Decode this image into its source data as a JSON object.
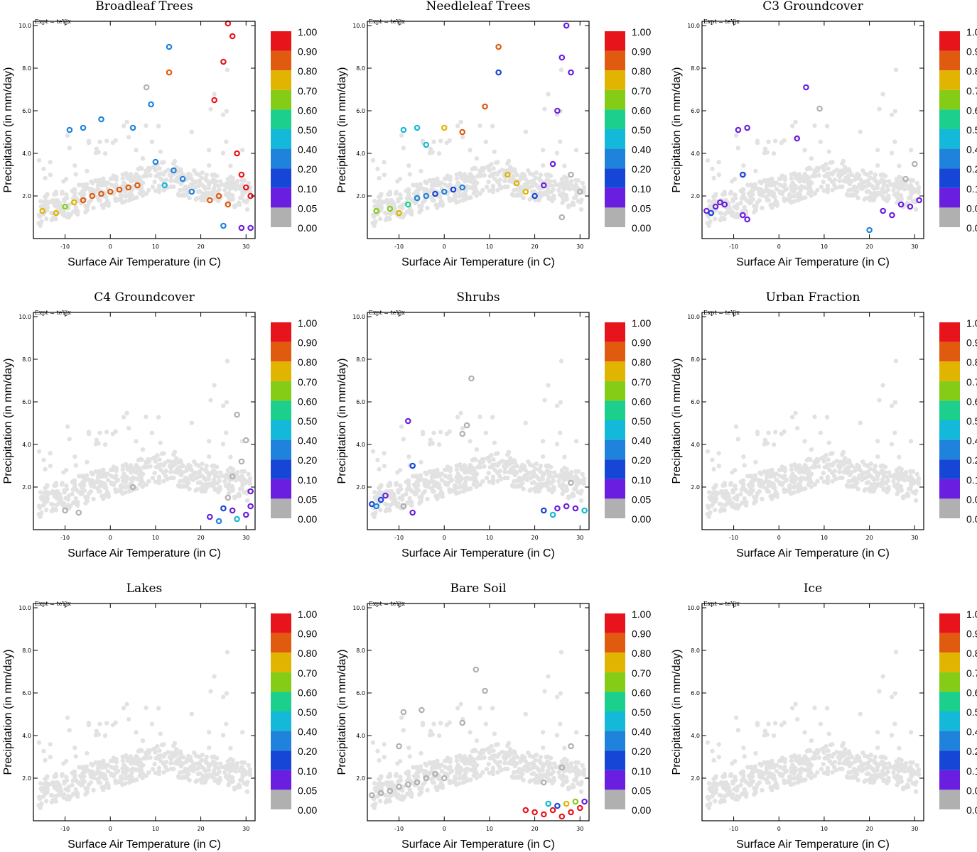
{
  "chart_data": {
    "type": "scatter",
    "figure_title": "",
    "expt_label": "Expt = teYjx",
    "xlabel": "Surface Air Temperature (in C)",
    "ylabel": "Precipitation (in mm/day)",
    "xlim": [
      -17,
      32
    ],
    "ylim": [
      0,
      10.2
    ],
    "xticks": [
      -10,
      0,
      10,
      20,
      30
    ],
    "yticks": [
      2.0,
      4.0,
      6.0,
      8.0,
      10.0
    ],
    "colorbar": {
      "labels": [
        "1.00",
        "0.90",
        "0.80",
        "0.70",
        "0.60",
        "0.50",
        "0.40",
        "0.20",
        "0.10",
        "0.05",
        "0.00"
      ],
      "colors": [
        "#e8141c",
        "#e05a10",
        "#e0b400",
        "#84cc16",
        "#1ccf8c",
        "#14b8d8",
        "#1f82db",
        "#1646d6",
        "#6a1ee0",
        "#b0b0b0"
      ]
    },
    "panels": [
      {
        "title": "Broadleaf Trees",
        "points": [
          {
            "x": -15,
            "y": 1.3,
            "c": 0.7
          },
          {
            "x": -12,
            "y": 1.2,
            "c": 0.7
          },
          {
            "x": -10,
            "y": 1.5,
            "c": 0.6
          },
          {
            "x": -8,
            "y": 1.7,
            "c": 0.7
          },
          {
            "x": -6,
            "y": 1.8,
            "c": 0.8
          },
          {
            "x": -4,
            "y": 2.0,
            "c": 0.8
          },
          {
            "x": -2,
            "y": 2.1,
            "c": 0.8
          },
          {
            "x": 0,
            "y": 2.2,
            "c": 0.8
          },
          {
            "x": 2,
            "y": 2.3,
            "c": 0.8
          },
          {
            "x": 4,
            "y": 2.4,
            "c": 0.8
          },
          {
            "x": 6,
            "y": 2.5,
            "c": 0.8
          },
          {
            "x": -9,
            "y": 5.1,
            "c": 0.2
          },
          {
            "x": -6,
            "y": 5.2,
            "c": 0.2
          },
          {
            "x": -2,
            "y": 5.6,
            "c": 0.2
          },
          {
            "x": 5,
            "y": 5.2,
            "c": 0.2
          },
          {
            "x": 9,
            "y": 6.3,
            "c": 0.2
          },
          {
            "x": 13,
            "y": 9.0,
            "c": 0.2
          },
          {
            "x": 13,
            "y": 7.8,
            "c": 0.8
          },
          {
            "x": 8,
            "y": 7.1,
            "c": 0.0
          },
          {
            "x": 10,
            "y": 3.6,
            "c": 0.2
          },
          {
            "x": 14,
            "y": 3.2,
            "c": 0.2
          },
          {
            "x": 16,
            "y": 2.8,
            "c": 0.2
          },
          {
            "x": 12,
            "y": 2.5,
            "c": 0.4
          },
          {
            "x": 18,
            "y": 2.2,
            "c": 0.2
          },
          {
            "x": 22,
            "y": 1.8,
            "c": 0.8
          },
          {
            "x": 24,
            "y": 2.0,
            "c": 0.8
          },
          {
            "x": 26,
            "y": 1.6,
            "c": 0.8
          },
          {
            "x": 23,
            "y": 6.5,
            "c": 0.9
          },
          {
            "x": 25,
            "y": 8.3,
            "c": 0.9
          },
          {
            "x": 26,
            "y": 10.1,
            "c": 0.9
          },
          {
            "x": 27,
            "y": 9.5,
            "c": 0.9
          },
          {
            "x": 28,
            "y": 4.0,
            "c": 0.9
          },
          {
            "x": 29,
            "y": 3.0,
            "c": 0.9
          },
          {
            "x": 30,
            "y": 2.4,
            "c": 0.9
          },
          {
            "x": 31,
            "y": 2.0,
            "c": 0.9
          },
          {
            "x": 29,
            "y": 0.5,
            "c": 0.05
          },
          {
            "x": 31,
            "y": 0.5,
            "c": 0.05
          },
          {
            "x": 25,
            "y": 0.6,
            "c": 0.2
          }
        ]
      },
      {
        "title": "Needleleaf Trees",
        "points": [
          {
            "x": -15,
            "y": 1.3,
            "c": 0.6
          },
          {
            "x": -12,
            "y": 1.4,
            "c": 0.6
          },
          {
            "x": -10,
            "y": 1.2,
            "c": 0.7
          },
          {
            "x": -8,
            "y": 1.6,
            "c": 0.5
          },
          {
            "x": -6,
            "y": 1.9,
            "c": 0.2
          },
          {
            "x": -4,
            "y": 2.0,
            "c": 0.2
          },
          {
            "x": -2,
            "y": 2.1,
            "c": 0.1
          },
          {
            "x": 0,
            "y": 2.2,
            "c": 0.2
          },
          {
            "x": 2,
            "y": 2.3,
            "c": 0.1
          },
          {
            "x": 4,
            "y": 2.4,
            "c": 0.2
          },
          {
            "x": -9,
            "y": 5.1,
            "c": 0.4
          },
          {
            "x": -6,
            "y": 5.2,
            "c": 0.4
          },
          {
            "x": -4,
            "y": 4.4,
            "c": 0.4
          },
          {
            "x": 0,
            "y": 5.2,
            "c": 0.7
          },
          {
            "x": 4,
            "y": 5.0,
            "c": 0.8
          },
          {
            "x": 9,
            "y": 6.2,
            "c": 0.8
          },
          {
            "x": 12,
            "y": 9.0,
            "c": 0.8
          },
          {
            "x": 12,
            "y": 7.8,
            "c": 0.1
          },
          {
            "x": 14,
            "y": 3.0,
            "c": 0.7
          },
          {
            "x": 16,
            "y": 2.6,
            "c": 0.7
          },
          {
            "x": 18,
            "y": 2.2,
            "c": 0.7
          },
          {
            "x": 20,
            "y": 2.0,
            "c": 0.1
          },
          {
            "x": 22,
            "y": 2.5,
            "c": 0.05
          },
          {
            "x": 24,
            "y": 3.5,
            "c": 0.05
          },
          {
            "x": 25,
            "y": 6.0,
            "c": 0.05
          },
          {
            "x": 26,
            "y": 8.5,
            "c": 0.05
          },
          {
            "x": 27,
            "y": 10.0,
            "c": 0.05
          },
          {
            "x": 28,
            "y": 7.8,
            "c": 0.05
          },
          {
            "x": 28,
            "y": 3.0,
            "c": 0.0
          },
          {
            "x": 30,
            "y": 2.2,
            "c": 0.0
          },
          {
            "x": 26,
            "y": 1.0,
            "c": 0.0
          }
        ]
      },
      {
        "title": "C3 Groundcover",
        "points": [
          {
            "x": -16,
            "y": 1.3,
            "c": 0.05
          },
          {
            "x": -15,
            "y": 1.2,
            "c": 0.1
          },
          {
            "x": -14,
            "y": 1.5,
            "c": 0.05
          },
          {
            "x": -13,
            "y": 1.7,
            "c": 0.05
          },
          {
            "x": -12,
            "y": 1.6,
            "c": 0.05
          },
          {
            "x": -8,
            "y": 1.1,
            "c": 0.05
          },
          {
            "x": -7,
            "y": 0.9,
            "c": 0.05
          },
          {
            "x": -9,
            "y": 5.1,
            "c": 0.05
          },
          {
            "x": -7,
            "y": 5.2,
            "c": 0.05
          },
          {
            "x": -8,
            "y": 3.0,
            "c": 0.1
          },
          {
            "x": 4,
            "y": 4.7,
            "c": 0.05
          },
          {
            "x": 6,
            "y": 7.1,
            "c": 0.05
          },
          {
            "x": 23,
            "y": 1.3,
            "c": 0.05
          },
          {
            "x": 25,
            "y": 1.1,
            "c": 0.05
          },
          {
            "x": 27,
            "y": 1.6,
            "c": 0.05
          },
          {
            "x": 29,
            "y": 1.5,
            "c": 0.05
          },
          {
            "x": 31,
            "y": 1.8,
            "c": 0.05
          },
          {
            "x": 20,
            "y": 0.4,
            "c": 0.2
          },
          {
            "x": 28,
            "y": 2.8,
            "c": 0.0
          },
          {
            "x": 30,
            "y": 3.5,
            "c": 0.0
          },
          {
            "x": 9,
            "y": 6.1,
            "c": 0.0
          }
        ]
      },
      {
        "title": "C4 Groundcover",
        "points": [
          {
            "x": -10,
            "y": 0.9,
            "c": 0.0
          },
          {
            "x": -7,
            "y": 0.8,
            "c": 0.0
          },
          {
            "x": 5,
            "y": 2.0,
            "c": 0.0
          },
          {
            "x": 27,
            "y": 2.5,
            "c": 0.0
          },
          {
            "x": 29,
            "y": 3.2,
            "c": 0.0
          },
          {
            "x": 30,
            "y": 4.2,
            "c": 0.0
          },
          {
            "x": 28,
            "y": 5.4,
            "c": 0.0
          },
          {
            "x": 26,
            "y": 1.5,
            "c": 0.0
          },
          {
            "x": 22,
            "y": 0.6,
            "c": 0.05
          },
          {
            "x": 25,
            "y": 1.0,
            "c": 0.1
          },
          {
            "x": 27,
            "y": 0.9,
            "c": 0.05
          },
          {
            "x": 28,
            "y": 0.5,
            "c": 0.4
          },
          {
            "x": 30,
            "y": 0.7,
            "c": 0.05
          },
          {
            "x": 31,
            "y": 1.8,
            "c": 0.05
          },
          {
            "x": 31,
            "y": 1.1,
            "c": 0.05
          },
          {
            "x": 24,
            "y": 0.4,
            "c": 0.2
          }
        ]
      },
      {
        "title": "Shrubs",
        "points": [
          {
            "x": -16,
            "y": 1.2,
            "c": 0.1
          },
          {
            "x": -15,
            "y": 1.1,
            "c": 0.2
          },
          {
            "x": -14,
            "y": 1.4,
            "c": 0.1
          },
          {
            "x": -13,
            "y": 1.6,
            "c": 0.05
          },
          {
            "x": -8,
            "y": 5.1,
            "c": 0.05
          },
          {
            "x": -7,
            "y": 3.0,
            "c": 0.1
          },
          {
            "x": -7,
            "y": 0.8,
            "c": 0.05
          },
          {
            "x": -9,
            "y": 1.1,
            "c": 0.0
          },
          {
            "x": 4,
            "y": 4.5,
            "c": 0.0
          },
          {
            "x": 5,
            "y": 4.9,
            "c": 0.0
          },
          {
            "x": 6,
            "y": 7.1,
            "c": 0.0
          },
          {
            "x": 22,
            "y": 0.9,
            "c": 0.1
          },
          {
            "x": 24,
            "y": 0.7,
            "c": 0.4
          },
          {
            "x": 25,
            "y": 1.0,
            "c": 0.05
          },
          {
            "x": 27,
            "y": 1.1,
            "c": 0.05
          },
          {
            "x": 29,
            "y": 1.0,
            "c": 0.05
          },
          {
            "x": 31,
            "y": 0.9,
            "c": 0.4
          },
          {
            "x": 28,
            "y": 2.2,
            "c": 0.0
          }
        ]
      },
      {
        "title": "Urban Fraction",
        "points": []
      },
      {
        "title": "Lakes",
        "points": []
      },
      {
        "title": "Bare Soil",
        "points": [
          {
            "x": -16,
            "y": 1.2,
            "c": 0.0
          },
          {
            "x": -14,
            "y": 1.3,
            "c": 0.0
          },
          {
            "x": -12,
            "y": 1.4,
            "c": 0.0
          },
          {
            "x": -10,
            "y": 1.6,
            "c": 0.0
          },
          {
            "x": -8,
            "y": 1.7,
            "c": 0.0
          },
          {
            "x": -6,
            "y": 1.8,
            "c": 0.0
          },
          {
            "x": -4,
            "y": 2.0,
            "c": 0.0
          },
          {
            "x": -2,
            "y": 2.2,
            "c": 0.0
          },
          {
            "x": 0,
            "y": 2.0,
            "c": 0.0
          },
          {
            "x": -10,
            "y": 3.5,
            "c": 0.0
          },
          {
            "x": -9,
            "y": 5.1,
            "c": 0.0
          },
          {
            "x": -5,
            "y": 5.2,
            "c": 0.0
          },
          {
            "x": 4,
            "y": 4.6,
            "c": 0.0
          },
          {
            "x": 7,
            "y": 7.1,
            "c": 0.0
          },
          {
            "x": 9,
            "y": 6.1,
            "c": 0.0
          },
          {
            "x": 22,
            "y": 1.8,
            "c": 0.0
          },
          {
            "x": 26,
            "y": 2.5,
            "c": 0.0
          },
          {
            "x": 28,
            "y": 3.5,
            "c": 0.0
          },
          {
            "x": 18,
            "y": 0.5,
            "c": 0.9
          },
          {
            "x": 20,
            "y": 0.4,
            "c": 0.9
          },
          {
            "x": 22,
            "y": 0.3,
            "c": 0.9
          },
          {
            "x": 24,
            "y": 0.5,
            "c": 0.9
          },
          {
            "x": 26,
            "y": 0.2,
            "c": 0.9
          },
          {
            "x": 28,
            "y": 0.4,
            "c": 0.9
          },
          {
            "x": 30,
            "y": 0.6,
            "c": 0.9
          },
          {
            "x": 23,
            "y": 0.8,
            "c": 0.4
          },
          {
            "x": 25,
            "y": 0.7,
            "c": 0.1
          },
          {
            "x": 27,
            "y": 0.8,
            "c": 0.7
          },
          {
            "x": 29,
            "y": 0.9,
            "c": 0.6
          },
          {
            "x": 31,
            "y": 0.9,
            "c": 0.05
          }
        ]
      },
      {
        "title": "Ice",
        "points": []
      }
    ]
  }
}
